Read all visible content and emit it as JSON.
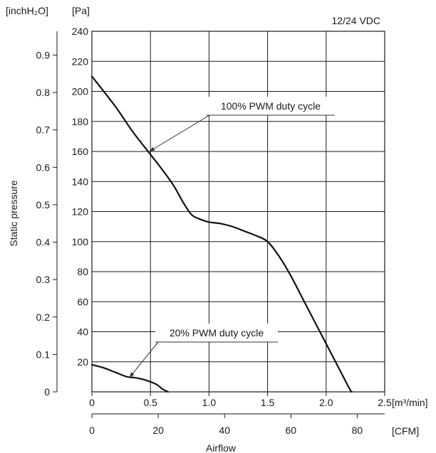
{
  "chart_data": {
    "type": "line",
    "subtitle": "12/24 VDC",
    "xlabel": "Airflow",
    "ylabel": "Static pressure",
    "units": {
      "y_left_outer": "[inchH₂O]",
      "y_left_inner": "[Pa]",
      "x_primary": "[m³/min]",
      "x_secondary": "[CFM]"
    },
    "x_m3min": {
      "range": [
        0,
        2.5
      ],
      "ticks": [
        {
          "value": 0,
          "label": "0"
        },
        {
          "value": 0.5,
          "label": "0.5"
        },
        {
          "value": 1.0,
          "label": "1.0"
        },
        {
          "value": 1.5,
          "label": "1.5"
        },
        {
          "value": 2.0,
          "label": "2.0"
        },
        {
          "value": 2.5,
          "label": "2.5"
        }
      ]
    },
    "x_cfm": {
      "ticks": [
        {
          "value": 0,
          "label": "0"
        },
        {
          "value": 20,
          "label": "20"
        },
        {
          "value": 40,
          "label": "40"
        },
        {
          "value": 60,
          "label": "60"
        },
        {
          "value": 80,
          "label": "80"
        }
      ]
    },
    "y_pa": {
      "range": [
        0,
        240
      ],
      "ticks": [
        {
          "value": 20,
          "label": "20"
        },
        {
          "value": 40,
          "label": "40"
        },
        {
          "value": 60,
          "label": "60"
        },
        {
          "value": 80,
          "label": "80"
        },
        {
          "value": 100,
          "label": "100"
        },
        {
          "value": 120,
          "label": "120"
        },
        {
          "value": 140,
          "label": "140"
        },
        {
          "value": 160,
          "label": "160"
        },
        {
          "value": 180,
          "label": "180"
        },
        {
          "value": 200,
          "label": "200"
        },
        {
          "value": 220,
          "label": "220"
        },
        {
          "value": 240,
          "label": "240"
        }
      ]
    },
    "y_inch": {
      "ticks": [
        {
          "value": 0,
          "label": "0"
        },
        {
          "value": 0.1,
          "label": "0.1"
        },
        {
          "value": 0.2,
          "label": "0.2"
        },
        {
          "value": 0.3,
          "label": "0.3"
        },
        {
          "value": 0.4,
          "label": "0.4"
        },
        {
          "value": 0.5,
          "label": "0.5"
        },
        {
          "value": 0.6,
          "label": "0.6"
        },
        {
          "value": 0.7,
          "label": "0.7"
        },
        {
          "value": 0.8,
          "label": "0.8"
        },
        {
          "value": 0.9,
          "label": "0.9"
        }
      ]
    },
    "series": [
      {
        "name": "100% PWM duty cycle",
        "points": [
          [
            0,
            210
          ],
          [
            0.2,
            190
          ],
          [
            0.35,
            173
          ],
          [
            0.5,
            158
          ],
          [
            0.6,
            148
          ],
          [
            0.7,
            137
          ],
          [
            0.78,
            126
          ],
          [
            0.85,
            118
          ],
          [
            0.92,
            115
          ],
          [
            1.0,
            113
          ],
          [
            1.1,
            112
          ],
          [
            1.2,
            110
          ],
          [
            1.3,
            107
          ],
          [
            1.4,
            104
          ],
          [
            1.5,
            100
          ],
          [
            1.6,
            90
          ],
          [
            1.7,
            77
          ],
          [
            1.8,
            62
          ],
          [
            1.9,
            47
          ],
          [
            2.0,
            32
          ],
          [
            2.1,
            17
          ],
          [
            2.2,
            2
          ],
          [
            2.22,
            0
          ]
        ]
      },
      {
        "name": "20% PWM duty cycle",
        "points": [
          [
            0,
            18
          ],
          [
            0.1,
            16
          ],
          [
            0.2,
            13
          ],
          [
            0.3,
            10
          ],
          [
            0.36,
            9.5
          ],
          [
            0.45,
            8
          ],
          [
            0.55,
            5
          ],
          [
            0.6,
            2
          ],
          [
            0.65,
            0
          ]
        ]
      }
    ],
    "annotations": [
      {
        "text": "100% PWM duty cycle",
        "series": 0,
        "points_to": [
          0.49,
          160
        ]
      },
      {
        "text": "20% PWM duty cycle",
        "series": 1,
        "points_to": [
          0.32,
          9.5
        ]
      }
    ],
    "grid": true
  }
}
